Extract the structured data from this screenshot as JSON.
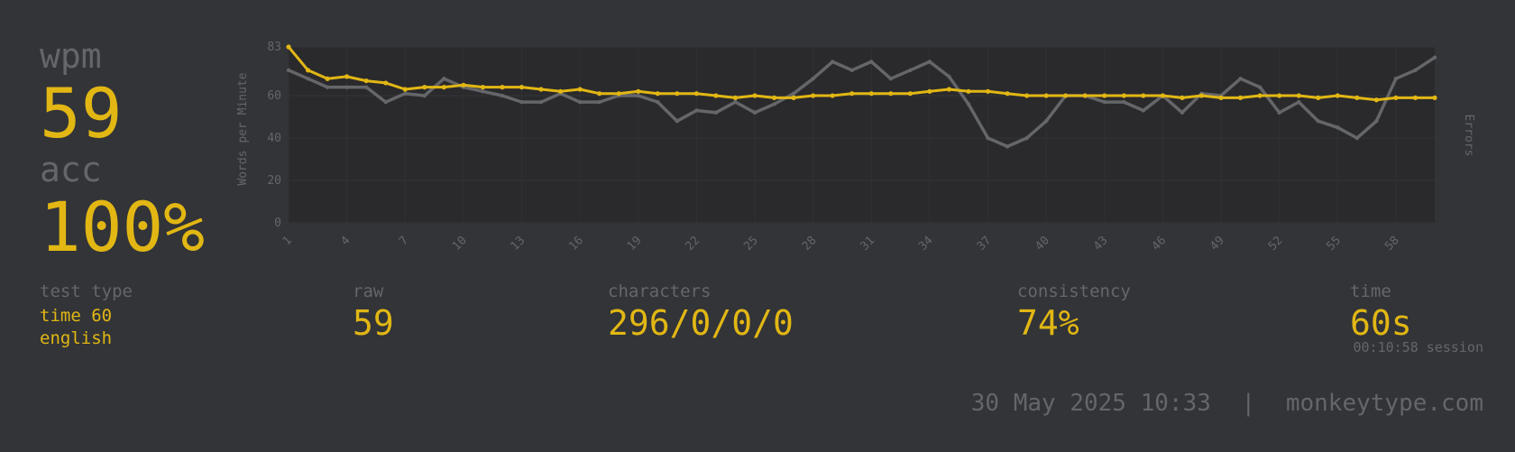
{
  "summary": {
    "wpm_label": "wpm",
    "wpm_value": "59",
    "acc_label": "acc",
    "acc_value": "100%"
  },
  "stats": {
    "test_type": {
      "label": "test type",
      "line1": "time 60",
      "line2": "english"
    },
    "raw": {
      "label": "raw",
      "value": "59"
    },
    "characters": {
      "label": "characters",
      "value": "296/0/0/0"
    },
    "consistency": {
      "label": "consistency",
      "value": "74%"
    },
    "time": {
      "label": "time",
      "value": "60s",
      "session": "00:10:58 session"
    }
  },
  "footer": {
    "datetime": "30 May 2025 10:33",
    "separator": "|",
    "site": "monkeytype.com"
  },
  "colors": {
    "background": "#323437",
    "accent": "#e2b714",
    "muted": "#646669",
    "plot_bg": "#2a2a2c"
  },
  "chart_data": {
    "type": "line",
    "ylabel": "Words per Minute",
    "y2label": "Errors",
    "ylim": [
      0,
      83
    ],
    "yticks": [
      "0",
      "20",
      "40",
      "60",
      "83"
    ],
    "xlim": [
      1,
      60
    ],
    "xticks": [
      "1",
      "4",
      "7",
      "10",
      "13",
      "16",
      "19",
      "22",
      "25",
      "28",
      "31",
      "34",
      "37",
      "40",
      "43",
      "46",
      "49",
      "52",
      "55",
      "58"
    ],
    "grid": true,
    "series": [
      {
        "key": "wpm",
        "color": "#e2b714",
        "values": [
          83,
          72,
          68,
          69,
          67,
          66,
          63,
          64,
          64,
          65,
          64,
          64,
          64,
          63,
          62,
          63,
          61,
          61,
          62,
          61,
          61,
          61,
          60,
          59,
          60,
          59,
          59,
          60,
          60,
          61,
          61,
          61,
          61,
          62,
          63,
          62,
          62,
          61,
          60,
          60,
          60,
          60,
          60,
          60,
          60,
          60,
          59,
          60,
          59,
          59,
          60,
          60,
          60,
          59,
          60,
          59,
          58,
          59,
          59,
          59
        ]
      },
      {
        "key": "raw",
        "color": "#646669",
        "values": [
          72,
          68,
          64,
          64,
          64,
          57,
          61,
          60,
          68,
          64,
          62,
          60,
          57,
          57,
          61,
          57,
          57,
          60,
          60,
          57,
          48,
          53,
          52,
          57,
          52,
          56,
          61,
          68,
          76,
          72,
          76,
          68,
          72,
          76,
          69,
          56,
          40,
          36,
          40,
          48,
          60,
          60,
          57,
          57,
          53,
          60,
          52,
          61,
          60,
          68,
          64,
          52,
          57,
          48,
          45,
          40,
          48,
          68,
          72,
          78
        ]
      }
    ]
  }
}
